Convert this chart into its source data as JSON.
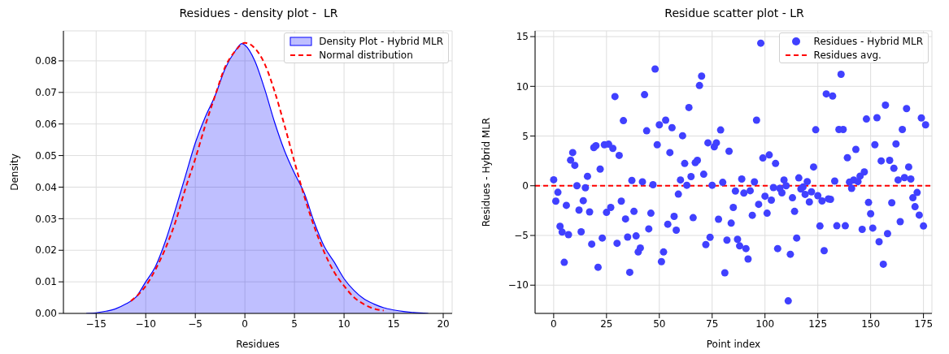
{
  "chart_data": [
    {
      "type": "area",
      "title": "Residues - density plot -  LR",
      "xlabel": "Residues",
      "ylabel": "Density",
      "legend": "top right",
      "grid": true,
      "xlim": [
        -18.3,
        20.9
      ],
      "ylim": [
        0,
        0.0895
      ],
      "xticks": [
        {
          "value": -15,
          "label": "−15"
        },
        {
          "value": -10,
          "label": "−10"
        },
        {
          "value": -5,
          "label": "−5"
        },
        0,
        5,
        10,
        15,
        20
      ],
      "yticks": [
        {
          "value": 0,
          "label": "0.00"
        },
        {
          "value": 0.01,
          "label": "0.01"
        },
        {
          "value": 0.02,
          "label": "0.02"
        },
        {
          "value": 0.03,
          "label": "0.03"
        },
        {
          "value": 0.04,
          "label": "0.04"
        },
        {
          "value": 0.05,
          "label": "0.05"
        },
        {
          "value": 0.06,
          "label": "0.06"
        },
        {
          "value": 0.07,
          "label": "0.07"
        },
        {
          "value": 0.08,
          "label": "0.08"
        }
      ],
      "series": [
        {
          "name": "Density Plot - Hybrid MLR",
          "color": "#0000ff",
          "x": [
            -16,
            -15,
            -14,
            -13,
            -12,
            -11,
            -10,
            -9,
            -8,
            -7,
            -6,
            -5,
            -4,
            -3,
            -2,
            -1,
            -0.3,
            0,
            1,
            2,
            3,
            4,
            5,
            6,
            7,
            8,
            9,
            10,
            11,
            12,
            13,
            14,
            15,
            16,
            17,
            18.5
          ],
          "values": [
            0,
            0.0002,
            0.0007,
            0.0015,
            0.003,
            0.0051,
            0.01,
            0.015,
            0.023,
            0.033,
            0.0435,
            0.054,
            0.0622,
            0.069,
            0.0775,
            0.083,
            0.0855,
            0.085,
            0.08,
            0.071,
            0.0605,
            0.0515,
            0.0444,
            0.038,
            0.0288,
            0.0212,
            0.0163,
            0.011,
            0.0073,
            0.0046,
            0.003,
            0.0018,
            0.0011,
            0.0006,
            0.0003,
            0
          ]
        },
        {
          "name": "Normal distribution",
          "type": "line",
          "color": "#ff0000",
          "line_style": "dashed",
          "x": [
            -11.5,
            -10,
            -9,
            -8,
            -7,
            -6,
            -5,
            -4,
            -3,
            -2,
            -1,
            0,
            1,
            2,
            3,
            4,
            5,
            6,
            7,
            8,
            9,
            10,
            11,
            12,
            13,
            14
          ],
          "values": [
            0.0039,
            0.0087,
            0.014,
            0.0207,
            0.029,
            0.0395,
            0.049,
            0.0595,
            0.069,
            0.078,
            0.083,
            0.0857,
            0.084,
            0.079,
            0.0703,
            0.0595,
            0.048,
            0.037,
            0.0274,
            0.0194,
            0.0131,
            0.0087,
            0.0051,
            0.0029,
            0.0015,
            0.0009
          ]
        }
      ]
    },
    {
      "type": "scatter",
      "title": "Residue scatter plot - LR",
      "xlabel": "Point index",
      "ylabel": "Residues - Hybrid MLR",
      "legend": "top right",
      "grid": true,
      "marker": "circle",
      "xlim": [
        -8.8,
        179
      ],
      "ylim": [
        -12.84,
        15.58
      ],
      "xticks": [
        0,
        25,
        50,
        75,
        100,
        125,
        150,
        175
      ],
      "yticks": [
        {
          "value": -10,
          "label": "−10"
        },
        {
          "value": -5,
          "label": "−5"
        },
        0,
        5,
        10,
        15
      ],
      "ref_lines": [
        {
          "axis": "y",
          "value": 0,
          "label": "Residues avg.",
          "color": "#ff0000",
          "line_style": "dashed"
        }
      ],
      "series": [
        {
          "name": "Residues - Hybrid MLR",
          "color": "#4040ff",
          "x": [
            0,
            1,
            2,
            3,
            4,
            5,
            6,
            7,
            8,
            9,
            10,
            11,
            12,
            13,
            14,
            15,
            16,
            17,
            18,
            19,
            20,
            21,
            22,
            23,
            24,
            25,
            26,
            27,
            28,
            29,
            30,
            31,
            32,
            33,
            34,
            35,
            36,
            37,
            38,
            39,
            40,
            41,
            42,
            43,
            44,
            45,
            46,
            47,
            48,
            49,
            50,
            51,
            52,
            53,
            54,
            55,
            56,
            57,
            58,
            59,
            60,
            61,
            62,
            63,
            64,
            65,
            66,
            67,
            68,
            69,
            70,
            71,
            72,
            73,
            74,
            75,
            76,
            77,
            78,
            79,
            80,
            81,
            82,
            83,
            84,
            85,
            86,
            87,
            88,
            89,
            90,
            91,
            92,
            93,
            94,
            95,
            96,
            97,
            98,
            99,
            100,
            101,
            102,
            103,
            104,
            105,
            106,
            107,
            108,
            109,
            110,
            111,
            112,
            113,
            114,
            115,
            116,
            117,
            118,
            119,
            120,
            121,
            122,
            123,
            124,
            125,
            126,
            127,
            128,
            129,
            130,
            131,
            132,
            133,
            134,
            135,
            136,
            137,
            138,
            139,
            140,
            141,
            142,
            143,
            144,
            145,
            146,
            147,
            148,
            149,
            150,
            151,
            152,
            153,
            154,
            155,
            156,
            157,
            158,
            159,
            160,
            161,
            162,
            163,
            164,
            165,
            166,
            167,
            168,
            169,
            170,
            171,
            172,
            173,
            174,
            175,
            176
          ],
          "values": [
            0.6,
            -1.55,
            -0.66,
            -4.08,
            -4.66,
            -7.7,
            -1.97,
            -4.92,
            2.58,
            3.34,
            2.05,
            0,
            -2.45,
            -4.63,
            -1.5,
            -0.2,
            0.95,
            -2.63,
            -5.87,
            3.84,
            4.03,
            -8.2,
            1.68,
            -5.26,
            4.13,
            -2.68,
            4.18,
            -2.18,
            3.76,
            8.97,
            -5.79,
            3.05,
            -1.55,
            6.55,
            -3.34,
            -5.16,
            -8.71,
            0.53,
            -2.58,
            -5.05,
            -6.66,
            -6.26,
            0.4,
            9.16,
            5.53,
            -4.34,
            -2.76,
            0.1,
            11.74,
            4.13,
            6.13,
            -7.63,
            -6.66,
            6.6,
            -3.87,
            3.34,
            5.84,
            -3.08,
            -4.47,
            -0.84,
            0.58,
            5.03,
            2.24,
            0.05,
            7.87,
            0.92,
            -3.21,
            2.32,
            2.55,
            10.08,
            11.03,
            1.16,
            -5.92,
            4.32,
            -5.18,
            0.05,
            3.92,
            4.32,
            -3.37,
            5.61,
            0.34,
            -8.76,
            -5.47,
            3.47,
            -3.76,
            -2.18,
            -0.53,
            -5.39,
            -6.05,
            0.68,
            -0.74,
            -6.32,
            -7.37,
            -0.5,
            -2.97,
            0.39,
            6.6,
            -1.87,
            14.34,
            2.79,
            -1.05,
            -2.76,
            3.1,
            -1.45,
            -0.18,
            2.24,
            -6.32,
            -0.26,
            -0.71,
            0.58,
            0,
            -11.58,
            -6.89,
            -1.21,
            -2.58,
            -5.26,
            0.79,
            -0.32,
            -0.13,
            -0.87,
            0.42,
            -1.63,
            -0.61,
            1.89,
            5.63,
            -1,
            -4.05,
            -1.53,
            -6.53,
            9.24,
            -1.32,
            -1.37,
            9.03,
            0.47,
            -4.03,
            5.66,
            11.21,
            5.66,
            -4.03,
            2.82,
            0.37,
            -0.26,
            0.58,
            3.66,
            0.42,
            0.97,
            -4.39,
            1.39,
            6.71,
            -1.68,
            -2.82,
            -4.26,
            4.13,
            6.84,
            -5.63,
            2.5,
            -7.89,
            8.11,
            -4.82,
            2.55,
            -1.71,
            1.76,
            4.21,
            0.58,
            -3.61,
            5.66,
            0.82,
            7.76,
            1.89,
            0.68,
            -1.21,
            -2.11,
            -0.68,
            -2.95,
            6.82,
            -4.05,
            6.13
          ]
        }
      ]
    }
  ]
}
